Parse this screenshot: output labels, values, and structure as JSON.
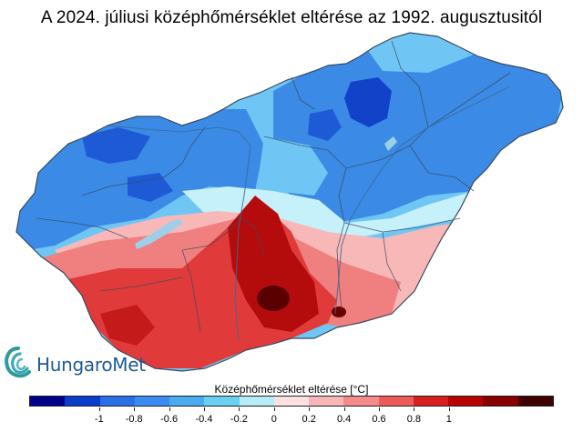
{
  "title": "A 2024. júliusi középhőmérséklet eltérése az 1992. augusztusitól",
  "logo_text": "HungaroMet",
  "legend": {
    "title": "Középhőmérséklet eltérése [°C]",
    "colors": [
      "#00008c",
      "#0a3ccc",
      "#2a6ee8",
      "#3a8cf0",
      "#4aacf0",
      "#6ad0f2",
      "#b4ecf8",
      "#fde0e0",
      "#f8b6b6",
      "#f48a8a",
      "#ec5a5a",
      "#d82020",
      "#b80000",
      "#880000",
      "#400000"
    ],
    "ticks": [
      "-1",
      "-0.8",
      "-0.6",
      "-0.4",
      "-0.2",
      "0",
      "0.2",
      "0.4",
      "0.6",
      "0.8",
      "1"
    ]
  },
  "map": {
    "country": "Hungary",
    "colors": {
      "dark_blue": "#1242c8",
      "blue": "#3a8ae6",
      "light_blue": "#6fc6f4",
      "pale_blue": "#c6f0fa",
      "pink": "#f8b8b8",
      "salmon": "#f08080",
      "red": "#e03a3a",
      "dark_red": "#b40c0c",
      "very_dark_red": "#5a0000",
      "lake": "#9fcfe8",
      "border": "#3a4a60"
    }
  }
}
